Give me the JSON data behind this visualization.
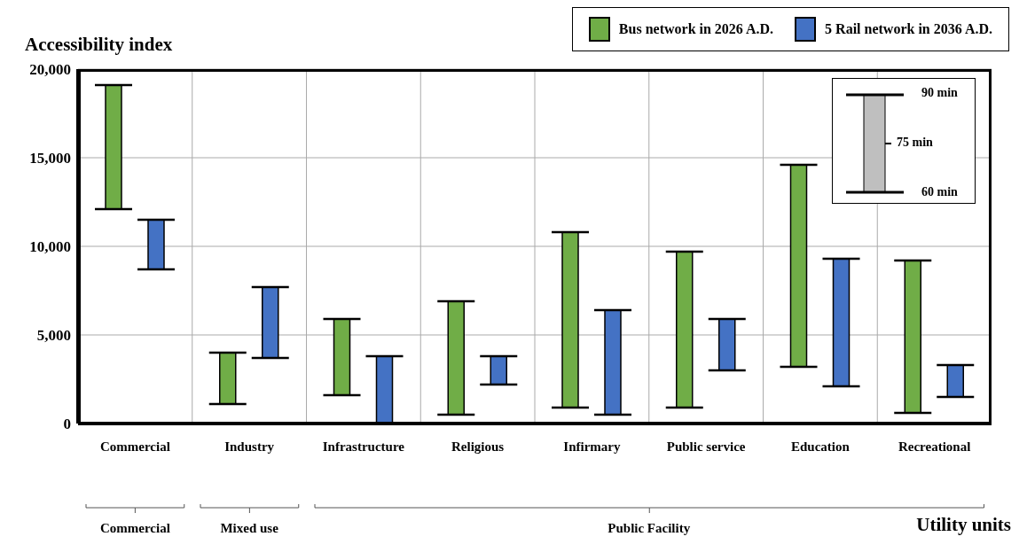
{
  "chart_data": {
    "type": "bar",
    "ylabel": "Accessibility index",
    "xlabel": "Utility units",
    "categories": [
      "Commercial",
      "Industry",
      "Infrastructure",
      "Religious",
      "Infirmary",
      "Public service",
      "Education",
      "Recreational"
    ],
    "series": [
      {
        "name": "Bus network in 2026 A.D.",
        "color": "#70ad47",
        "base": [
          12100,
          1100,
          1600,
          500,
          900,
          900,
          3200,
          600
        ],
        "values": [
          7000,
          2900,
          4300,
          6400,
          9900,
          8800,
          11400,
          8600
        ]
      },
      {
        "name": "5 Rail network in 2036 A.D.",
        "color": "#4472c4",
        "base": [
          8700,
          3700,
          0,
          2200,
          500,
          3000,
          2100,
          1500
        ],
        "values": [
          2800,
          4000,
          3800,
          1600,
          5900,
          2900,
          7200,
          1800
        ]
      }
    ],
    "ylim": [
      0,
      20000
    ],
    "yticks": [
      {
        "value": 0,
        "label": "0"
      },
      {
        "value": 5000,
        "label": "5,000"
      },
      {
        "value": 10000,
        "label": "10,000"
      },
      {
        "value": 15000,
        "label": "15,000"
      },
      {
        "value": 20000,
        "label": "20,000"
      }
    ],
    "grid": true,
    "legend": "top right",
    "annotations": [
      "Commercial",
      "Mixed use",
      "Public Facility",
      "90 min",
      "75 min",
      "60 min"
    ]
  }
}
